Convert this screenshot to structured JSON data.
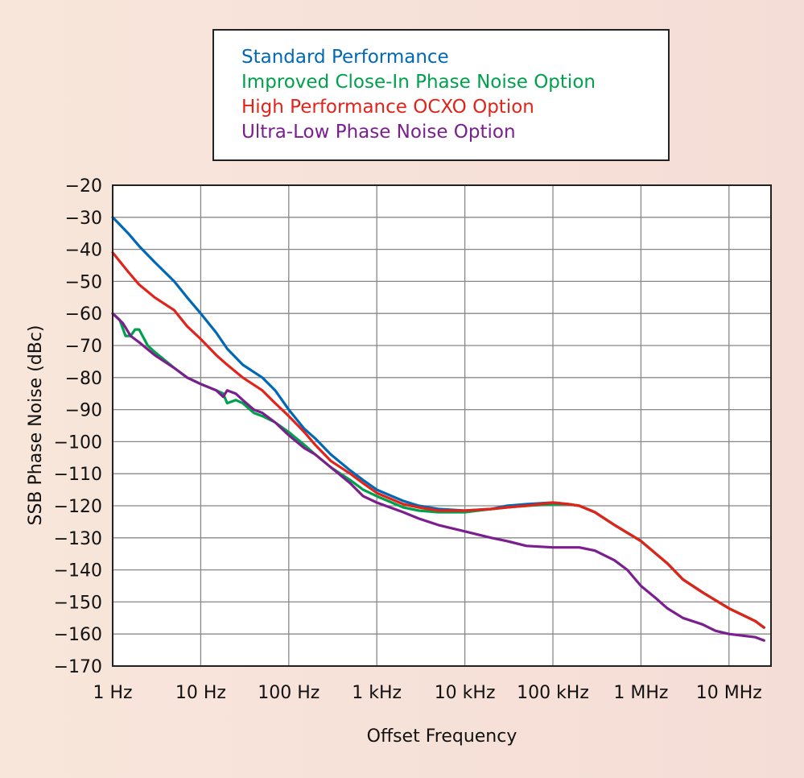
{
  "chart_data": {
    "type": "line",
    "title": "",
    "xlabel": "Offset Frequency",
    "ylabel": "SSB Phase Noise (dBc)",
    "x_scale": "log",
    "xlim": [
      1,
      30000000
    ],
    "ylim": [
      -170,
      -20
    ],
    "grid": true,
    "legend_position": "top-center",
    "x_ticks": [
      {
        "value": 1,
        "label": "1 Hz"
      },
      {
        "value": 10,
        "label": "10 Hz"
      },
      {
        "value": 100,
        "label": "100 Hz"
      },
      {
        "value": 1000,
        "label": "1 kHz"
      },
      {
        "value": 10000,
        "label": "10 kHz"
      },
      {
        "value": 100000,
        "label": "100 kHz"
      },
      {
        "value": 1000000,
        "label": "1 MHz"
      },
      {
        "value": 10000000,
        "label": "10 MHz"
      }
    ],
    "y_ticks": [
      {
        "value": -20,
        "label": "−20"
      },
      {
        "value": -30,
        "label": "−30"
      },
      {
        "value": -40,
        "label": "−40"
      },
      {
        "value": -50,
        "label": "−50"
      },
      {
        "value": -60,
        "label": "−60"
      },
      {
        "value": -70,
        "label": "−70"
      },
      {
        "value": -80,
        "label": "−80"
      },
      {
        "value": -90,
        "label": "−90"
      },
      {
        "value": -100,
        "label": "−100"
      },
      {
        "value": -110,
        "label": "−110"
      },
      {
        "value": -120,
        "label": "−120"
      },
      {
        "value": -130,
        "label": "−130"
      },
      {
        "value": -140,
        "label": "−140"
      },
      {
        "value": -150,
        "label": "−150"
      },
      {
        "value": -160,
        "label": "−160"
      },
      {
        "value": -170,
        "label": "−170"
      }
    ],
    "series": [
      {
        "name": "Standard Performance",
        "color": "#0068b4",
        "x": [
          1,
          1.5,
          2,
          3,
          5,
          7,
          10,
          15,
          20,
          30,
          50,
          70,
          100,
          150,
          200,
          300,
          500,
          700,
          1000,
          2000,
          3000,
          5000,
          10000,
          20000,
          30000,
          50000,
          100000,
          150000,
          200000,
          300000,
          500000,
          1000000,
          2000000,
          3000000,
          5000000,
          10000000,
          20000000,
          25000000
        ],
        "y": [
          -30,
          -35,
          -39,
          -44,
          -50,
          -55,
          -60,
          -66,
          -71,
          -76,
          -80,
          -84,
          -90,
          -96,
          -99,
          -104,
          -109,
          -112,
          -115,
          -118.5,
          -120,
          -121,
          -121.5,
          -121,
          -120,
          -119.5,
          -119,
          -119.5,
          -120,
          -122,
          -126,
          -131,
          -138,
          -143,
          -147,
          -152,
          -156,
          -158
        ]
      },
      {
        "name": "Improved Close-In Phase Noise Option",
        "color": "#00a04c",
        "x": [
          1,
          1.2,
          1.4,
          1.6,
          1.8,
          2,
          2.5,
          3,
          5,
          7,
          10,
          15,
          18,
          20,
          25,
          30,
          40,
          50,
          70,
          100,
          150,
          200,
          300,
          500,
          700,
          1000,
          2000,
          3000,
          5000,
          10000,
          20000,
          30000,
          50000,
          100000,
          150000,
          200000,
          300000,
          500000,
          1000000,
          2000000,
          3000000,
          5000000,
          10000000,
          20000000,
          25000000
        ],
        "y": [
          -60,
          -62,
          -67,
          -67,
          -65,
          -65,
          -70,
          -72,
          -77,
          -80,
          -82,
          -84,
          -85,
          -88,
          -87,
          -88,
          -91,
          -92,
          -94,
          -97,
          -101,
          -104,
          -108,
          -112,
          -115,
          -117,
          -120.5,
          -121.5,
          -122,
          -122,
          -121,
          -120.5,
          -120,
          -119.5,
          -119.5,
          -120,
          -122,
          -126,
          -131,
          -138,
          -143,
          -147,
          -152,
          -156,
          -158
        ]
      },
      {
        "name": "High Performance OCXO Option",
        "color": "#e2231a",
        "x": [
          1,
          1.5,
          2,
          3,
          5,
          7,
          10,
          15,
          20,
          30,
          50,
          70,
          100,
          150,
          200,
          300,
          500,
          700,
          1000,
          2000,
          3000,
          5000,
          10000,
          20000,
          30000,
          50000,
          100000,
          150000,
          200000,
          300000,
          500000,
          1000000,
          2000000,
          3000000,
          5000000,
          10000000,
          20000000,
          25000000
        ],
        "y": [
          -41,
          -47,
          -51,
          -55,
          -59,
          -64,
          -68,
          -73,
          -76,
          -80,
          -84,
          -88,
          -92,
          -97,
          -101,
          -106,
          -110,
          -113,
          -116,
          -119.5,
          -120.5,
          -121.5,
          -121.5,
          -121,
          -120.5,
          -120,
          -119,
          -119.5,
          -120,
          -122,
          -126,
          -131,
          -138,
          -143,
          -147,
          -152,
          -156,
          -158
        ]
      },
      {
        "name": "Ultra-Low Phase Noise Option",
        "color": "#7b1f8f",
        "x": [
          1,
          1.3,
          1.6,
          2,
          3,
          5,
          7,
          10,
          15,
          18,
          20,
          25,
          30,
          40,
          50,
          70,
          100,
          150,
          200,
          300,
          500,
          700,
          1000,
          2000,
          3000,
          5000,
          10000,
          20000,
          30000,
          50000,
          100000,
          200000,
          300000,
          500000,
          700000,
          1000000,
          1500000,
          2000000,
          3000000,
          5000000,
          7000000,
          10000000,
          20000000,
          25000000
        ],
        "y": [
          -60,
          -63,
          -67,
          -69,
          -73,
          -77,
          -80,
          -82,
          -84,
          -86,
          -84,
          -85,
          -87,
          -90,
          -91,
          -94,
          -98,
          -102,
          -104,
          -108,
          -113,
          -117,
          -119,
          -122,
          -124,
          -126,
          -128,
          -130,
          -131,
          -132.5,
          -133,
          -133,
          -134,
          -137,
          -140,
          -145,
          -149,
          -152,
          -155,
          -157,
          -159,
          -160,
          -161,
          -162
        ]
      }
    ]
  }
}
